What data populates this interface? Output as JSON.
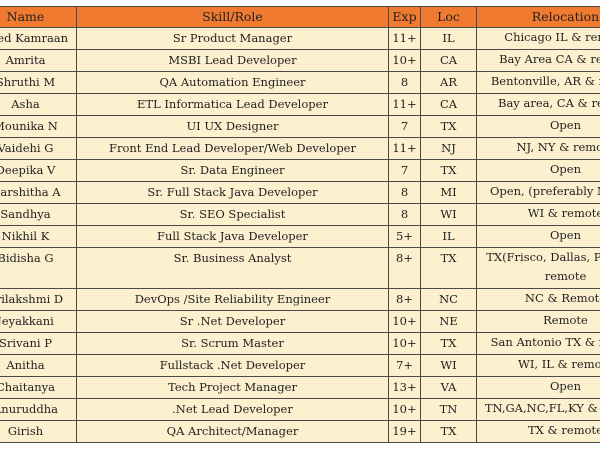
{
  "headers": {
    "name": "Name",
    "skill": "Skill/Role",
    "exp": "Exp",
    "loc": "Loc",
    "reloc": "Relocation"
  },
  "rows": [
    {
      "name": "Syed Kamraan",
      "skill": "Sr Product Manager",
      "exp": "11+",
      "loc": "IL",
      "reloc": "Chicago IL & remote"
    },
    {
      "name": "Amrita",
      "skill": "MSBI Lead Developer",
      "exp": "10+",
      "loc": "CA",
      "reloc": "Bay Area CA & remote"
    },
    {
      "name": "Shruthi M",
      "skill": "QA Automation Engineer",
      "exp": "8",
      "loc": "AR",
      "reloc": "Bentonville, AR & remote"
    },
    {
      "name": "Asha",
      "skill": "ETL Informatica Lead Developer",
      "exp": "11+",
      "loc": "CA",
      "reloc": "Bay area, CA & remote"
    },
    {
      "name": "Mounika N",
      "skill": "UI UX Designer",
      "exp": "7",
      "loc": "TX",
      "reloc": "Open"
    },
    {
      "name": "Vaidehi G",
      "skill": "Front End Lead Developer/Web Developer",
      "exp": "11+",
      "loc": "NJ",
      "reloc": "NJ, NY & remote"
    },
    {
      "name": "Deepika V",
      "skill": "Sr. Data Engineer",
      "exp": "7",
      "loc": "TX",
      "reloc": "Open"
    },
    {
      "name": "Harshitha A",
      "skill": "Sr. Full Stack Java Developer",
      "exp": "8",
      "loc": "MI",
      "reloc": "Open, (preferably NO MI)"
    },
    {
      "name": "Sandhya",
      "skill": "Sr. SEO Specialist",
      "exp": "8",
      "loc": "WI",
      "reloc": "WI & remote"
    },
    {
      "name": "Nikhil K",
      "skill": "Full Stack Java Developer",
      "exp": "5+",
      "loc": "IL",
      "reloc": "Open"
    },
    {
      "name": "Bidisha G",
      "skill": "Sr. Business Analyst",
      "exp": "8+",
      "loc": "TX",
      "reloc": "TX(Frisco, Dallas, Plano) & remote"
    },
    {
      "name": "Srilakshmi D",
      "skill": "DevOps /Site Reliability Engineer",
      "exp": "8+",
      "loc": "NC",
      "reloc": "NC & Remote"
    },
    {
      "name": "Jeyakkani",
      "skill": "Sr .Net Developer",
      "exp": "10+",
      "loc": "NE",
      "reloc": "Remote"
    },
    {
      "name": "Srivani P",
      "skill": "Sr. Scrum Master",
      "exp": "10+",
      "loc": "TX",
      "reloc": "San Antonio TX & remote"
    },
    {
      "name": "Anitha",
      "skill": "Fullstack .Net Developer",
      "exp": "7+",
      "loc": "WI",
      "reloc": "WI, IL & remote"
    },
    {
      "name": "Chaitanya",
      "skill": "Tech Project Manager",
      "exp": "13+",
      "loc": "VA",
      "reloc": "Open"
    },
    {
      "name": "Anuruddha",
      "skill": ".Net Lead Developer",
      "exp": "10+",
      "loc": "TN",
      "reloc": "TN,GA,NC,FL,KY & Remote"
    },
    {
      "name": "Girish",
      "skill": "QA Architect/Manager",
      "exp": "19+",
      "loc": "TX",
      "reloc": "TX & remote"
    }
  ]
}
